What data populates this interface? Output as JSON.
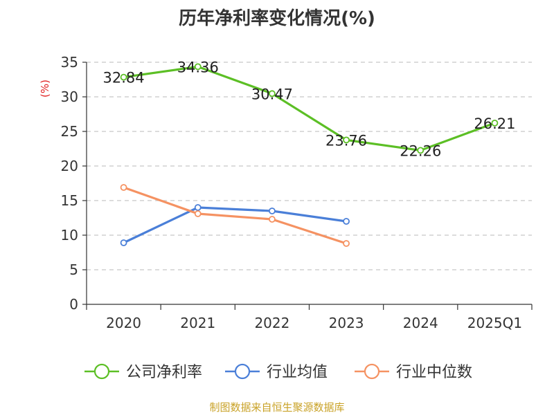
{
  "title": "历年净利率变化情况(%)",
  "source": "制图数据来自恒生聚源数据库",
  "chart_data": {
    "type": "line",
    "title": "历年净利率变化情况(%)",
    "ylabel": "(%)",
    "xlabel": "",
    "categories": [
      "2020",
      "2021",
      "2022",
      "2023",
      "2024",
      "2025Q1"
    ],
    "yticks": [
      0,
      5,
      10,
      15,
      20,
      25,
      30,
      35
    ],
    "ylim": [
      0,
      35
    ],
    "grid": true,
    "legend_position": "bottom",
    "series": [
      {
        "name": "公司净利率",
        "color": "#5cbf25",
        "values": [
          32.84,
          34.36,
          30.47,
          23.76,
          22.26,
          26.21
        ],
        "show_labels": true
      },
      {
        "name": "行业均值",
        "color": "#4a7fd8",
        "values": [
          8.9,
          14.0,
          13.5,
          12.0,
          null,
          null
        ],
        "show_labels": false
      },
      {
        "name": "行业中位数",
        "color": "#f59262",
        "values": [
          16.9,
          13.1,
          12.3,
          8.8,
          null,
          null
        ],
        "show_labels": false
      }
    ]
  }
}
